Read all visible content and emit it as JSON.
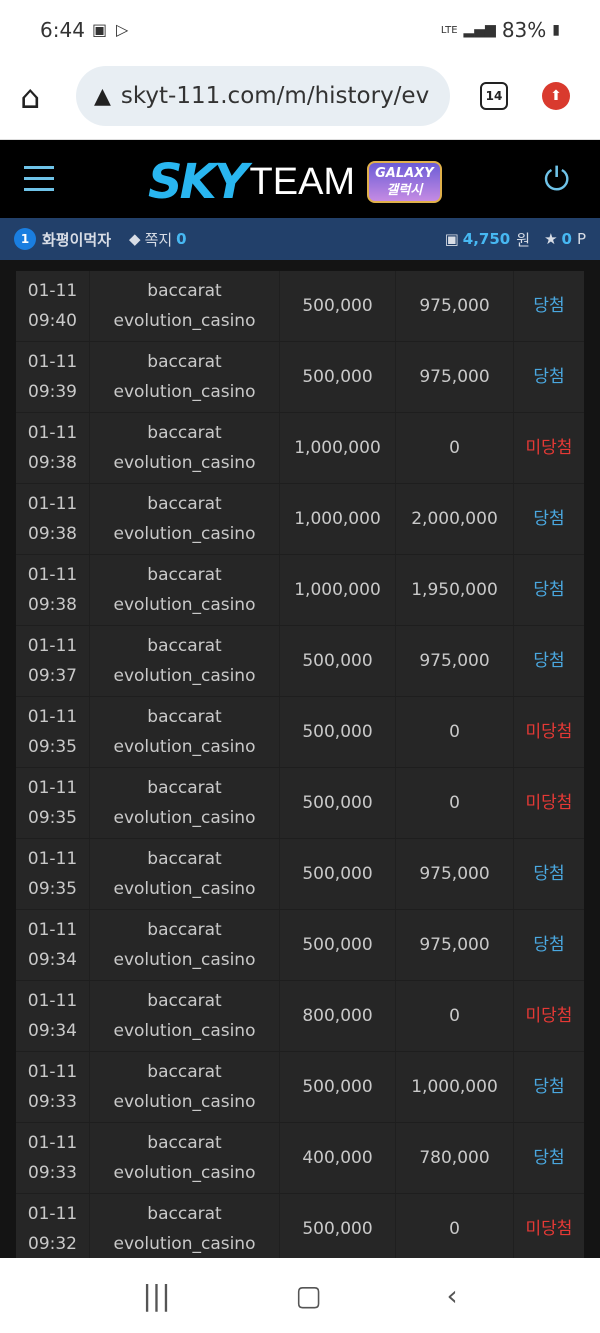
{
  "status_bar": {
    "time": "6:44",
    "network": "LTE",
    "battery": "83%"
  },
  "browser": {
    "url": "skyt-111.com/m/history/ev",
    "tab_count": "14"
  },
  "header": {
    "logo_sky": "SKY",
    "logo_team": "TEAM",
    "logo_badge_top": "GALAXY",
    "logo_badge_bottom": "갤럭시"
  },
  "user": {
    "level": "1",
    "name": "화평이먹자",
    "message_label": "쪽지",
    "message_count": "0",
    "balance": "4,750",
    "currency": "원",
    "points": "0",
    "points_unit": "P"
  },
  "colors": {
    "win": "#4aa8e0",
    "lose": "#e53935",
    "accent": "#47b8f2"
  },
  "rows": [
    {
      "date": "01-11",
      "time": "09:40",
      "game": "baccarat",
      "provider": "evolution_casino",
      "bet": "500,000",
      "win": "975,000",
      "result": "당첨"
    },
    {
      "date": "01-11",
      "time": "09:39",
      "game": "baccarat",
      "provider": "evolution_casino",
      "bet": "500,000",
      "win": "975,000",
      "result": "당첨"
    },
    {
      "date": "01-11",
      "time": "09:38",
      "game": "baccarat",
      "provider": "evolution_casino",
      "bet": "1,000,000",
      "win": "0",
      "result": "미당첨"
    },
    {
      "date": "01-11",
      "time": "09:38",
      "game": "baccarat",
      "provider": "evolution_casino",
      "bet": "1,000,000",
      "win": "2,000,000",
      "result": "당첨"
    },
    {
      "date": "01-11",
      "time": "09:38",
      "game": "baccarat",
      "provider": "evolution_casino",
      "bet": "1,000,000",
      "win": "1,950,000",
      "result": "당첨"
    },
    {
      "date": "01-11",
      "time": "09:37",
      "game": "baccarat",
      "provider": "evolution_casino",
      "bet": "500,000",
      "win": "975,000",
      "result": "당첨"
    },
    {
      "date": "01-11",
      "time": "09:35",
      "game": "baccarat",
      "provider": "evolution_casino",
      "bet": "500,000",
      "win": "0",
      "result": "미당첨"
    },
    {
      "date": "01-11",
      "time": "09:35",
      "game": "baccarat",
      "provider": "evolution_casino",
      "bet": "500,000",
      "win": "0",
      "result": "미당첨"
    },
    {
      "date": "01-11",
      "time": "09:35",
      "game": "baccarat",
      "provider": "evolution_casino",
      "bet": "500,000",
      "win": "975,000",
      "result": "당첨"
    },
    {
      "date": "01-11",
      "time": "09:34",
      "game": "baccarat",
      "provider": "evolution_casino",
      "bet": "500,000",
      "win": "975,000",
      "result": "당첨"
    },
    {
      "date": "01-11",
      "time": "09:34",
      "game": "baccarat",
      "provider": "evolution_casino",
      "bet": "800,000",
      "win": "0",
      "result": "미당첨"
    },
    {
      "date": "01-11",
      "time": "09:33",
      "game": "baccarat",
      "provider": "evolution_casino",
      "bet": "500,000",
      "win": "1,000,000",
      "result": "당첨"
    },
    {
      "date": "01-11",
      "time": "09:33",
      "game": "baccarat",
      "provider": "evolution_casino",
      "bet": "400,000",
      "win": "780,000",
      "result": "당첨"
    },
    {
      "date": "01-11",
      "time": "09:32",
      "game": "baccarat",
      "provider": "evolution_casino",
      "bet": "500,000",
      "win": "0",
      "result": "미당첨"
    }
  ]
}
